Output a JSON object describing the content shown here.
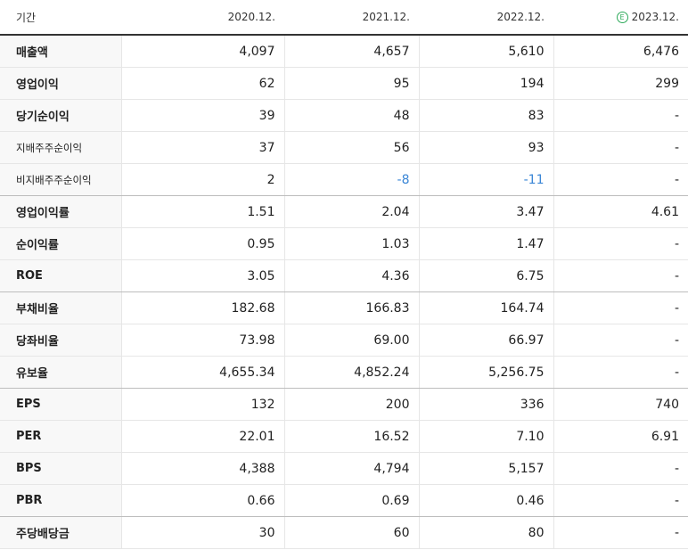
{
  "header": {
    "label": "기간",
    "years": [
      "2020.12.",
      "2021.12.",
      "2022.12.",
      "2023.12."
    ],
    "estimate_badge": "E"
  },
  "rows": [
    {
      "label": "매출액",
      "values": [
        "4,097",
        "4,657",
        "5,610",
        "6,476"
      ]
    },
    {
      "label": "영업이익",
      "values": [
        "62",
        "95",
        "194",
        "299"
      ]
    },
    {
      "label": "당기순이익",
      "values": [
        "39",
        "48",
        "83",
        "-"
      ]
    },
    {
      "label": "지배주주순이익",
      "values": [
        "37",
        "56",
        "93",
        "-"
      ]
    },
    {
      "label": "비지배주주순이익",
      "values": [
        "2",
        "-8",
        "-11",
        "-"
      ]
    },
    {
      "label": "영업이익률",
      "values": [
        "1.51",
        "2.04",
        "3.47",
        "4.61"
      ]
    },
    {
      "label": "순이익률",
      "values": [
        "0.95",
        "1.03",
        "1.47",
        "-"
      ]
    },
    {
      "label": "ROE",
      "values": [
        "3.05",
        "4.36",
        "6.75",
        "-"
      ]
    },
    {
      "label": "부채비율",
      "values": [
        "182.68",
        "166.83",
        "164.74",
        "-"
      ]
    },
    {
      "label": "당좌비율",
      "values": [
        "73.98",
        "69.00",
        "66.97",
        "-"
      ]
    },
    {
      "label": "유보율",
      "values": [
        "4,655.34",
        "4,852.24",
        "5,256.75",
        "-"
      ]
    },
    {
      "label": "EPS",
      "values": [
        "132",
        "200",
        "336",
        "740"
      ]
    },
    {
      "label": "PER",
      "values": [
        "22.01",
        "16.52",
        "7.10",
        "6.91"
      ]
    },
    {
      "label": "BPS",
      "values": [
        "4,388",
        "4,794",
        "5,157",
        "-"
      ]
    },
    {
      "label": "PBR",
      "values": [
        "0.66",
        "0.69",
        "0.46",
        "-"
      ]
    },
    {
      "label": "주당배당금",
      "values": [
        "30",
        "60",
        "80",
        "-"
      ]
    }
  ],
  "colors": {
    "negative": "#3a86d6",
    "estimate": "#2eaa5a"
  }
}
